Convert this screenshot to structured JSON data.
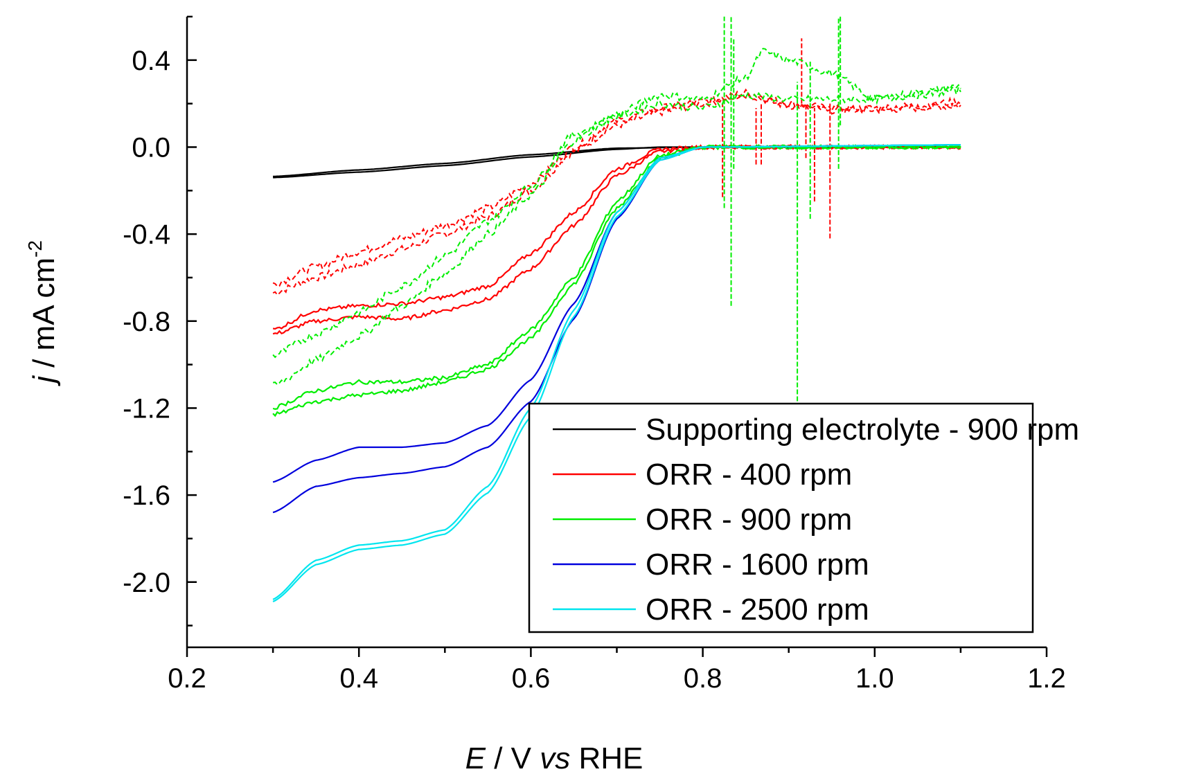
{
  "chart_data": {
    "type": "line",
    "xlabel": "E / V vs RHE",
    "ylabel": "j / mA cm-2",
    "xlabel_parts": {
      "e": "E",
      "mid": " / V ",
      "vs": "vs",
      "end": " RHE"
    },
    "ylabel_parts": {
      "j": "j",
      "mid": " / mA cm",
      "sup": "-2"
    },
    "xlim": [
      0.2,
      1.2
    ],
    "ylim": [
      -2.3,
      0.6
    ],
    "x_ticks": [
      "0.2",
      "0.4",
      "0.6",
      "0.8",
      "1.0",
      "1.2"
    ],
    "y_ticks": [
      "0.4",
      "0.0",
      "-0.4",
      "-0.8",
      "-1.2",
      "-1.6",
      "-2.0"
    ],
    "grid": false,
    "legend_position": "bottom-right",
    "series": [
      {
        "name": "Supporting electrolyte - 900 rpm",
        "color": "#000000",
        "solid": [
          [
            0.3,
            -0.14
          ],
          [
            0.4,
            -0.115
          ],
          [
            0.5,
            -0.085
          ],
          [
            0.6,
            -0.045
          ],
          [
            0.7,
            -0.01
          ],
          [
            0.75,
            0.0
          ],
          [
            0.8,
            0.0
          ],
          [
            0.9,
            0.0
          ],
          [
            1.0,
            0.0
          ],
          [
            1.1,
            0.0
          ]
        ],
        "solid_return": [
          [
            0.3,
            -0.135
          ],
          [
            0.4,
            -0.105
          ],
          [
            0.5,
            -0.075
          ],
          [
            0.6,
            -0.035
          ],
          [
            0.7,
            -0.005
          ],
          [
            0.8,
            0.0
          ],
          [
            1.1,
            0.0
          ]
        ]
      },
      {
        "name": "ORR - 400 rpm",
        "color": "#ff0000",
        "solid": [
          [
            0.3,
            -0.86
          ],
          [
            0.35,
            -0.8
          ],
          [
            0.4,
            -0.78
          ],
          [
            0.45,
            -0.79
          ],
          [
            0.5,
            -0.75
          ],
          [
            0.55,
            -0.7
          ],
          [
            0.6,
            -0.56
          ],
          [
            0.65,
            -0.36
          ],
          [
            0.7,
            -0.13
          ],
          [
            0.75,
            -0.02
          ],
          [
            0.8,
            0.0
          ],
          [
            1.1,
            0.0
          ]
        ],
        "solid_return": [
          [
            0.3,
            -0.84
          ],
          [
            0.35,
            -0.75
          ],
          [
            0.4,
            -0.73
          ],
          [
            0.45,
            -0.72
          ],
          [
            0.5,
            -0.69
          ],
          [
            0.55,
            -0.64
          ],
          [
            0.6,
            -0.49
          ],
          [
            0.65,
            -0.3
          ],
          [
            0.7,
            -0.1
          ],
          [
            0.75,
            -0.01
          ],
          [
            0.8,
            0.0
          ],
          [
            1.1,
            0.0
          ]
        ],
        "dashed": [
          [
            0.3,
            -0.67
          ],
          [
            0.35,
            -0.6
          ],
          [
            0.4,
            -0.54
          ],
          [
            0.45,
            -0.47
          ],
          [
            0.5,
            -0.4
          ],
          [
            0.55,
            -0.32
          ],
          [
            0.6,
            -0.2
          ],
          [
            0.65,
            -0.02
          ],
          [
            0.7,
            0.1
          ],
          [
            0.75,
            0.16
          ],
          [
            0.8,
            0.2
          ],
          [
            0.85,
            0.25
          ],
          [
            0.9,
            0.2
          ],
          [
            0.95,
            0.18
          ],
          [
            1.0,
            0.17
          ],
          [
            1.05,
            0.18
          ],
          [
            1.1,
            0.19
          ]
        ],
        "dashed_return": [
          [
            0.3,
            -0.63
          ],
          [
            0.35,
            -0.55
          ],
          [
            0.4,
            -0.48
          ],
          [
            0.45,
            -0.42
          ],
          [
            0.5,
            -0.36
          ],
          [
            0.55,
            -0.28
          ],
          [
            0.6,
            -0.17
          ],
          [
            0.65,
            0.0
          ],
          [
            0.7,
            0.12
          ],
          [
            0.75,
            0.18
          ],
          [
            0.8,
            0.21
          ],
          [
            0.85,
            0.24
          ],
          [
            0.9,
            0.19
          ],
          [
            0.95,
            0.17
          ],
          [
            1.0,
            0.18
          ],
          [
            1.05,
            0.19
          ],
          [
            1.1,
            0.21
          ]
        ],
        "spikes": [
          [
            0.823,
            -0.23,
            0.2
          ],
          [
            0.862,
            -0.08,
            0.18
          ],
          [
            0.868,
            -0.08,
            0.2
          ],
          [
            0.915,
            0.2,
            0.5
          ],
          [
            0.92,
            -0.05,
            0.2
          ],
          [
            0.93,
            -0.25,
            0.18
          ],
          [
            0.948,
            -0.42,
            0.2
          ]
        ]
      },
      {
        "name": "ORR - 900 rpm",
        "color": "#00ee00",
        "solid": [
          [
            0.3,
            -1.2
          ],
          [
            0.35,
            -1.12
          ],
          [
            0.4,
            -1.08
          ],
          [
            0.45,
            -1.08
          ],
          [
            0.5,
            -1.06
          ],
          [
            0.55,
            -1.0
          ],
          [
            0.6,
            -0.84
          ],
          [
            0.65,
            -0.6
          ],
          [
            0.7,
            -0.25
          ],
          [
            0.75,
            -0.04
          ],
          [
            0.8,
            0.0
          ],
          [
            1.1,
            0.0
          ]
        ],
        "solid_return": [
          [
            0.3,
            -1.23
          ],
          [
            0.35,
            -1.17
          ],
          [
            0.4,
            -1.14
          ],
          [
            0.45,
            -1.12
          ],
          [
            0.5,
            -1.08
          ],
          [
            0.55,
            -1.02
          ],
          [
            0.6,
            -0.88
          ],
          [
            0.65,
            -0.63
          ],
          [
            0.7,
            -0.28
          ],
          [
            0.75,
            -0.05
          ],
          [
            0.8,
            0.0
          ],
          [
            1.1,
            0.0
          ]
        ],
        "dashed": [
          [
            0.3,
            -1.1
          ],
          [
            0.35,
            -0.98
          ],
          [
            0.4,
            -0.87
          ],
          [
            0.45,
            -0.73
          ],
          [
            0.5,
            -0.58
          ],
          [
            0.55,
            -0.4
          ],
          [
            0.6,
            -0.22
          ],
          [
            0.65,
            0.03
          ],
          [
            0.7,
            0.15
          ],
          [
            0.75,
            0.24
          ],
          [
            0.8,
            0.22
          ],
          [
            0.85,
            0.32
          ],
          [
            0.87,
            0.44
          ],
          [
            0.9,
            0.4
          ],
          [
            0.95,
            0.34
          ],
          [
            1.0,
            0.22
          ],
          [
            1.05,
            0.25
          ],
          [
            1.1,
            0.28
          ]
        ],
        "dashed_return": [
          [
            0.3,
            -0.96
          ],
          [
            0.35,
            -0.86
          ],
          [
            0.4,
            -0.76
          ],
          [
            0.45,
            -0.64
          ],
          [
            0.5,
            -0.5
          ],
          [
            0.55,
            -0.34
          ],
          [
            0.6,
            -0.18
          ],
          [
            0.65,
            0.06
          ],
          [
            0.7,
            0.14
          ],
          [
            0.75,
            0.2
          ],
          [
            0.8,
            0.18
          ],
          [
            0.85,
            0.24
          ],
          [
            0.9,
            0.22
          ],
          [
            0.95,
            0.22
          ],
          [
            1.0,
            0.22
          ],
          [
            1.05,
            0.24
          ],
          [
            1.1,
            0.26
          ]
        ],
        "spikes": [
          [
            0.825,
            -0.28,
            0.6
          ],
          [
            0.833,
            -0.73,
            0.6
          ],
          [
            0.836,
            -0.1,
            0.5
          ],
          [
            0.91,
            -1.2,
            0.3
          ],
          [
            0.925,
            -0.33,
            0.4
          ],
          [
            0.958,
            -0.1,
            0.6
          ],
          [
            0.96,
            0.1,
            0.6
          ]
        ]
      },
      {
        "name": "ORR - 1600 rpm",
        "color": "#0000dd",
        "solid": [
          [
            0.3,
            -1.54
          ],
          [
            0.35,
            -1.44
          ],
          [
            0.4,
            -1.38
          ],
          [
            0.45,
            -1.38
          ],
          [
            0.5,
            -1.36
          ],
          [
            0.55,
            -1.28
          ],
          [
            0.6,
            -1.07
          ],
          [
            0.65,
            -0.72
          ],
          [
            0.7,
            -0.3
          ],
          [
            0.75,
            -0.05
          ],
          [
            0.8,
            0.0
          ],
          [
            1.1,
            0.01
          ]
        ],
        "solid_return": [
          [
            0.3,
            -1.68
          ],
          [
            0.35,
            -1.56
          ],
          [
            0.4,
            -1.52
          ],
          [
            0.45,
            -1.5
          ],
          [
            0.5,
            -1.47
          ],
          [
            0.55,
            -1.38
          ],
          [
            0.6,
            -1.17
          ],
          [
            0.65,
            -0.79
          ],
          [
            0.7,
            -0.33
          ],
          [
            0.75,
            -0.06
          ],
          [
            0.8,
            0.0
          ],
          [
            1.1,
            0.01
          ]
        ]
      },
      {
        "name": "ORR - 2500 rpm",
        "color": "#00e5ee",
        "solid": [
          [
            0.3,
            -2.09
          ],
          [
            0.35,
            -1.92
          ],
          [
            0.4,
            -1.85
          ],
          [
            0.45,
            -1.83
          ],
          [
            0.5,
            -1.78
          ],
          [
            0.55,
            -1.59
          ],
          [
            0.6,
            -1.24
          ],
          [
            0.65,
            -0.78
          ],
          [
            0.7,
            -0.32
          ],
          [
            0.75,
            -0.06
          ],
          [
            0.8,
            0.0
          ],
          [
            1.1,
            0.01
          ]
        ],
        "solid_return": [
          [
            0.3,
            -2.08
          ],
          [
            0.35,
            -1.9
          ],
          [
            0.4,
            -1.83
          ],
          [
            0.45,
            -1.81
          ],
          [
            0.5,
            -1.76
          ],
          [
            0.55,
            -1.56
          ],
          [
            0.6,
            -1.2
          ],
          [
            0.65,
            -0.75
          ],
          [
            0.7,
            -0.3
          ],
          [
            0.75,
            -0.05
          ],
          [
            0.8,
            0.0
          ],
          [
            1.1,
            0.01
          ]
        ]
      }
    ]
  }
}
